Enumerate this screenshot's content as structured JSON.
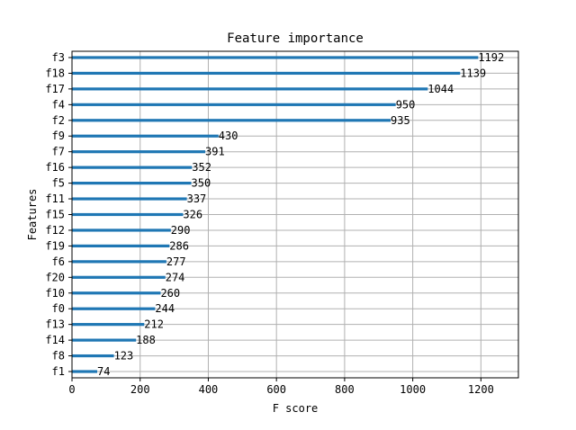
{
  "chart_data": {
    "type": "bar",
    "orientation": "horizontal",
    "title": "Feature importance",
    "xlabel": "F score",
    "ylabel": "Features",
    "xlim": [
      0,
      1310
    ],
    "xticks": [
      0,
      200,
      400,
      600,
      800,
      1000,
      1200
    ],
    "grid": true,
    "colors": {
      "bar": "#1f77b4",
      "grid": "#b0b0b0",
      "axis": "#000000"
    },
    "categories": [
      "f3",
      "f18",
      "f17",
      "f4",
      "f2",
      "f9",
      "f7",
      "f16",
      "f5",
      "f11",
      "f15",
      "f12",
      "f19",
      "f6",
      "f20",
      "f10",
      "f0",
      "f13",
      "f14",
      "f8",
      "f1"
    ],
    "values": [
      1192,
      1139,
      1044,
      950,
      935,
      430,
      391,
      352,
      350,
      337,
      326,
      290,
      286,
      277,
      274,
      260,
      244,
      212,
      188,
      123,
      74
    ]
  }
}
